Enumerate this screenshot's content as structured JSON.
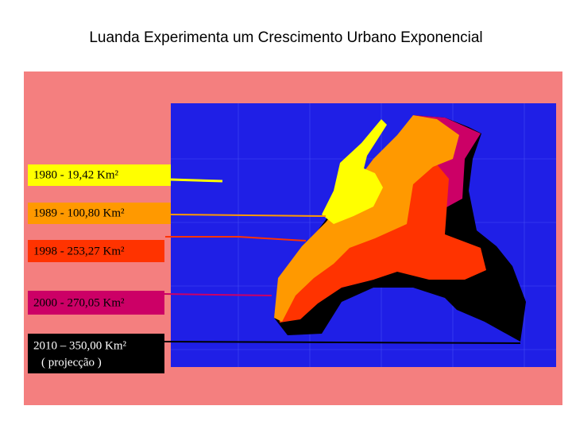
{
  "title": "Luanda Experimenta um Crescimento Urbano Exponencial",
  "legend": [
    {
      "label": "1980 - 19,42 Km²"
    },
    {
      "label": "1989 - 100,80 Km²"
    },
    {
      "label": "1998 - 253,27 Km²"
    },
    {
      "label": "2000 - 270,05 Km²"
    },
    {
      "label": "2010 – 350,00 Km²",
      "note": "( projecção )"
    }
  ]
}
